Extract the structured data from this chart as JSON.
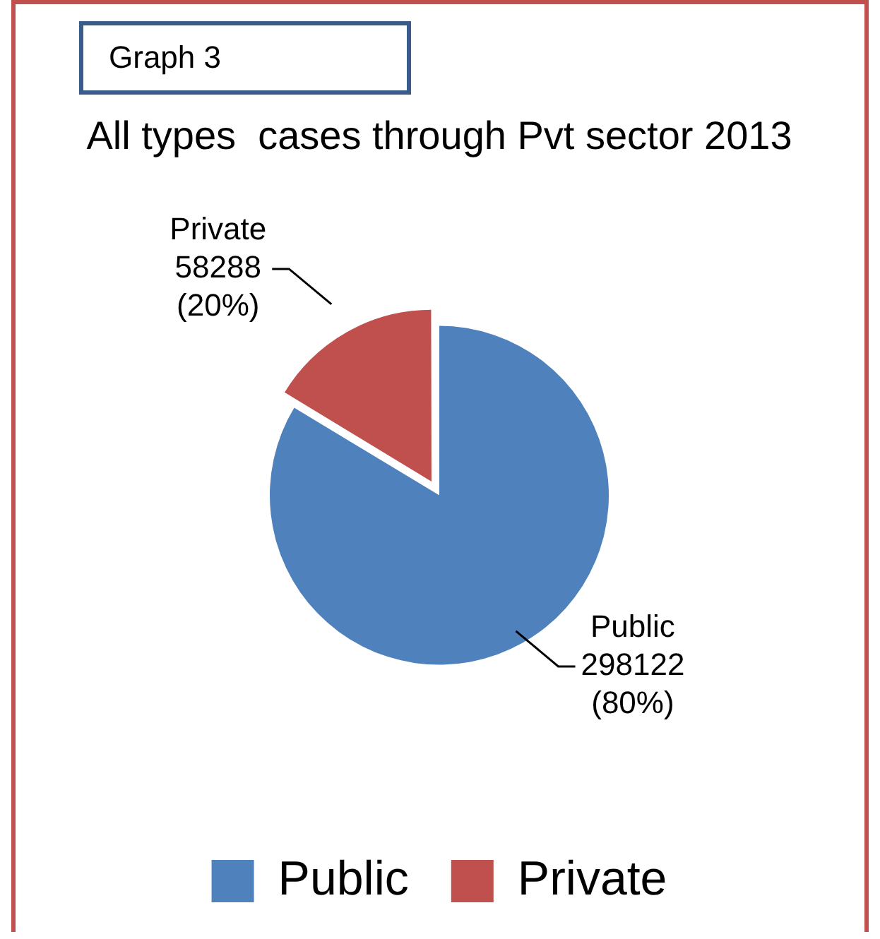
{
  "chart_data": {
    "type": "pie",
    "title": "All types  cases through Pvt sector 2013",
    "annotations": [
      "Graph 3"
    ],
    "categories": [
      "Public",
      "Private"
    ],
    "values": [
      298122,
      58288
    ],
    "colors": [
      "#4f81bd",
      "#c0504d"
    ],
    "value_labels": [
      "298122\n(80%)",
      "58288\n(20%)"
    ],
    "legend": "bottom"
  }
}
